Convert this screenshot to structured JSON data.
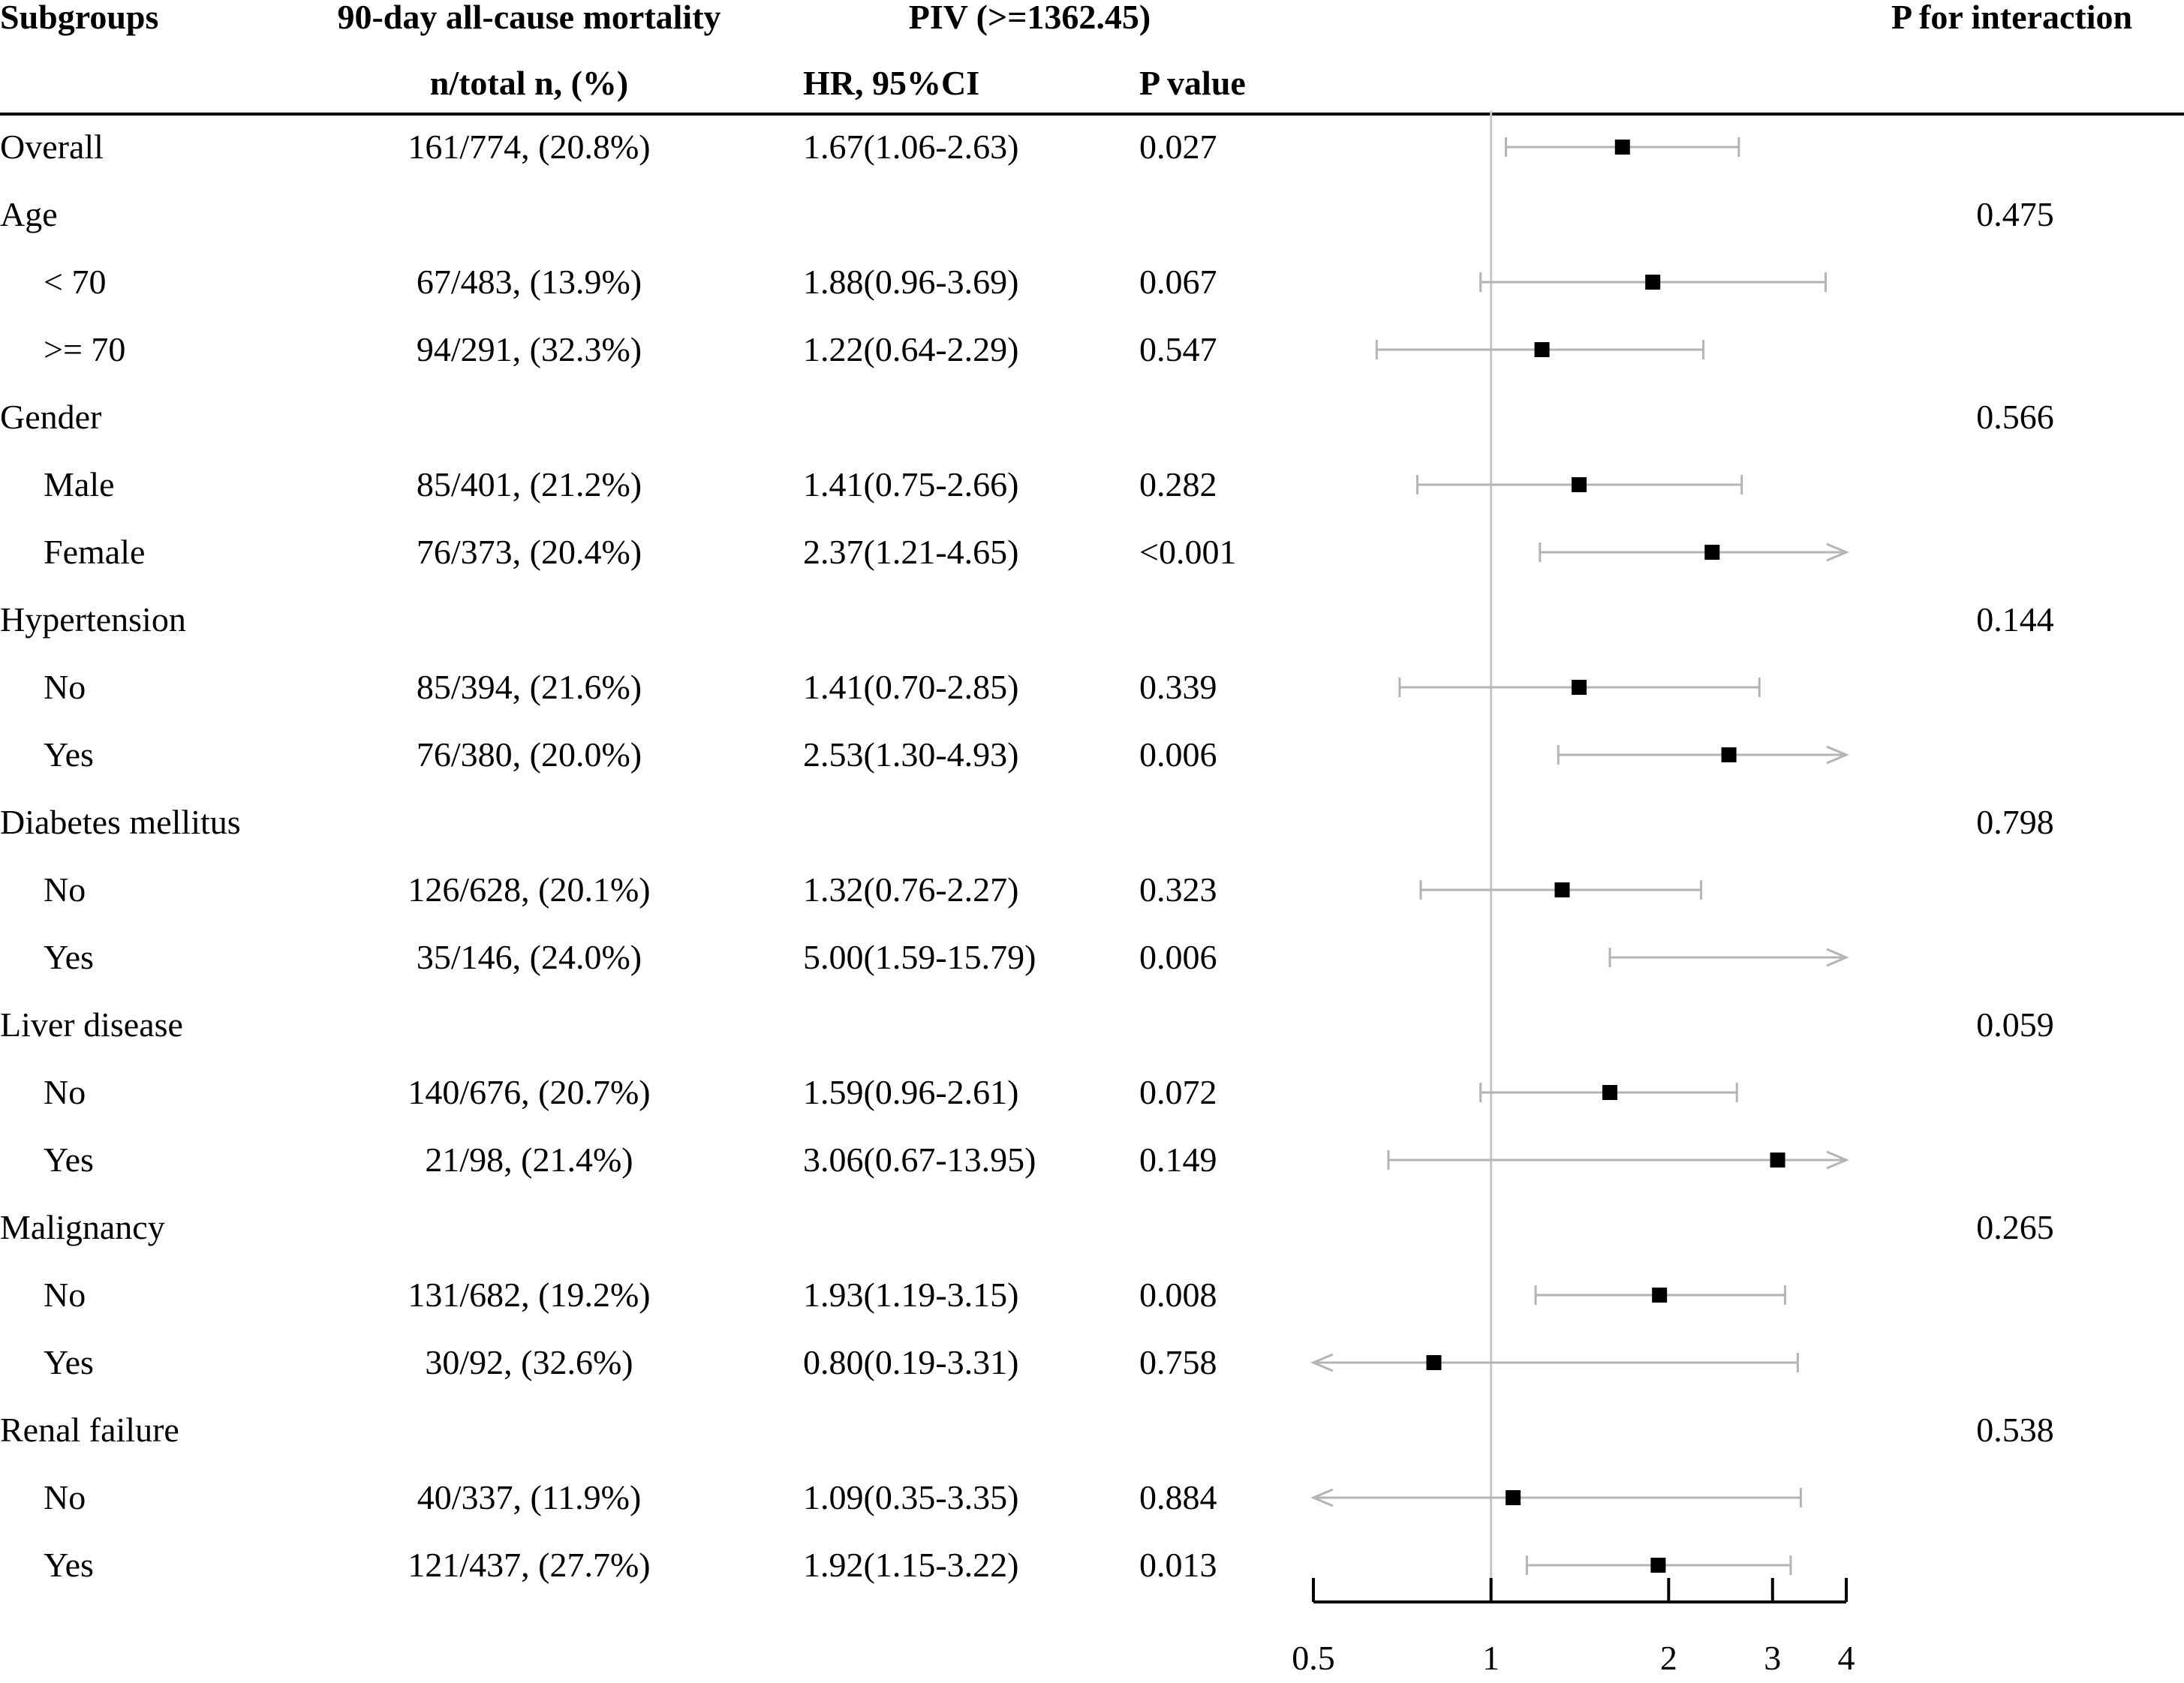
{
  "chart_data": {
    "type": "forest",
    "title": "PIV (>=1362.45)",
    "outcome": "90-day all-cause mortality",
    "headers": {
      "subgroups": "Subgroups",
      "outcome": "90-day all-cause mortality",
      "exposure": "PIV (>=1362.45)",
      "p_interaction": "P for interaction",
      "n_total": "n/total n, (%)",
      "hr": "HR, 95%CI",
      "p_value": "P value"
    },
    "x_axis": {
      "scale": "log",
      "ticks": [
        0.5,
        1,
        2,
        3,
        4
      ],
      "tick_labels": [
        "0.5",
        "1",
        "2",
        "3",
        "4"
      ],
      "xlim": [
        0.5,
        4
      ],
      "reference_line": 1
    },
    "rows": [
      {
        "label": "Overall",
        "indent": false,
        "n": "161/774, (20.8%)",
        "hr_text": "1.67(1.06-2.63)",
        "p": "0.027",
        "hr": 1.67,
        "lo": 1.06,
        "hi": 2.63
      },
      {
        "label": "Age",
        "indent": false,
        "p_int": "0.475"
      },
      {
        "label": "< 70",
        "indent": true,
        "n": "67/483, (13.9%)",
        "hr_text": "1.88(0.96-3.69)",
        "p": "0.067",
        "hr": 1.88,
        "lo": 0.96,
        "hi": 3.69
      },
      {
        "label": ">= 70",
        "indent": true,
        "n": "94/291, (32.3%)",
        "hr_text": "1.22(0.64-2.29)",
        "p": "0.547",
        "hr": 1.22,
        "lo": 0.64,
        "hi": 2.29
      },
      {
        "label": "Gender",
        "indent": false,
        "p_int": "0.566"
      },
      {
        "label": "Male",
        "indent": true,
        "n": "85/401, (21.2%)",
        "hr_text": "1.41(0.75-2.66)",
        "p": "0.282",
        "hr": 1.41,
        "lo": 0.75,
        "hi": 2.66
      },
      {
        "label": "Female",
        "indent": true,
        "n": "76/373, (20.4%)",
        "hr_text": "2.37(1.21-4.65)",
        "p": "<0.001",
        "hr": 2.37,
        "lo": 1.21,
        "hi": 4.65
      },
      {
        "label": "Hypertension",
        "indent": false,
        "p_int": "0.144"
      },
      {
        "label": "No",
        "indent": true,
        "n": "85/394, (21.6%)",
        "hr_text": "1.41(0.70-2.85)",
        "p": "0.339",
        "hr": 1.41,
        "lo": 0.7,
        "hi": 2.85
      },
      {
        "label": "Yes",
        "indent": true,
        "n": "76/380, (20.0%)",
        "hr_text": "2.53(1.30-4.93)",
        "p": "0.006",
        "hr": 2.53,
        "lo": 1.3,
        "hi": 4.93
      },
      {
        "label": "Diabetes mellitus",
        "indent": false,
        "p_int": "0.798"
      },
      {
        "label": "No",
        "indent": true,
        "n": "126/628, (20.1%)",
        "hr_text": "1.32(0.76-2.27)",
        "p": "0.323",
        "hr": 1.32,
        "lo": 0.76,
        "hi": 2.27
      },
      {
        "label": "Yes",
        "indent": true,
        "n": "35/146, (24.0%)",
        "hr_text": "5.00(1.59-15.79)",
        "p": "0.006",
        "hr": 5.0,
        "lo": 1.59,
        "hi": 15.79
      },
      {
        "label": "Liver disease",
        "indent": false,
        "p_int": "0.059"
      },
      {
        "label": "No",
        "indent": true,
        "n": "140/676, (20.7%)",
        "hr_text": "1.59(0.96-2.61)",
        "p": "0.072",
        "hr": 1.59,
        "lo": 0.96,
        "hi": 2.61
      },
      {
        "label": "Yes",
        "indent": true,
        "n": "21/98, (21.4%)",
        "hr_text": "3.06(0.67-13.95)",
        "p": "0.149",
        "hr": 3.06,
        "lo": 0.67,
        "hi": 13.95
      },
      {
        "label": "Malignancy",
        "indent": false,
        "p_int": "0.265"
      },
      {
        "label": "No",
        "indent": true,
        "n": "131/682, (19.2%)",
        "hr_text": "1.93(1.19-3.15)",
        "p": "0.008",
        "hr": 1.93,
        "lo": 1.19,
        "hi": 3.15
      },
      {
        "label": "Yes",
        "indent": true,
        "n": "30/92, (32.6%)",
        "hr_text": "0.80(0.19-3.31)",
        "p": "0.758",
        "hr": 0.8,
        "lo": 0.19,
        "hi": 3.31
      },
      {
        "label": "Renal failure",
        "indent": false,
        "p_int": "0.538"
      },
      {
        "label": "No",
        "indent": true,
        "n": "40/337, (11.9%)",
        "hr_text": "1.09(0.35-3.35)",
        "p": "0.884",
        "hr": 1.09,
        "lo": 0.35,
        "hi": 3.35
      },
      {
        "label": "Yes",
        "indent": true,
        "n": "121/437, (27.7%)",
        "hr_text": "1.92(1.15-3.22)",
        "p": "0.013",
        "hr": 1.92,
        "lo": 1.15,
        "hi": 3.22
      }
    ],
    "colors": {
      "ci_line": "#b4b4b4",
      "marker": "#000000",
      "ref_line": "#c8c8c8",
      "axis": "#000000"
    }
  }
}
